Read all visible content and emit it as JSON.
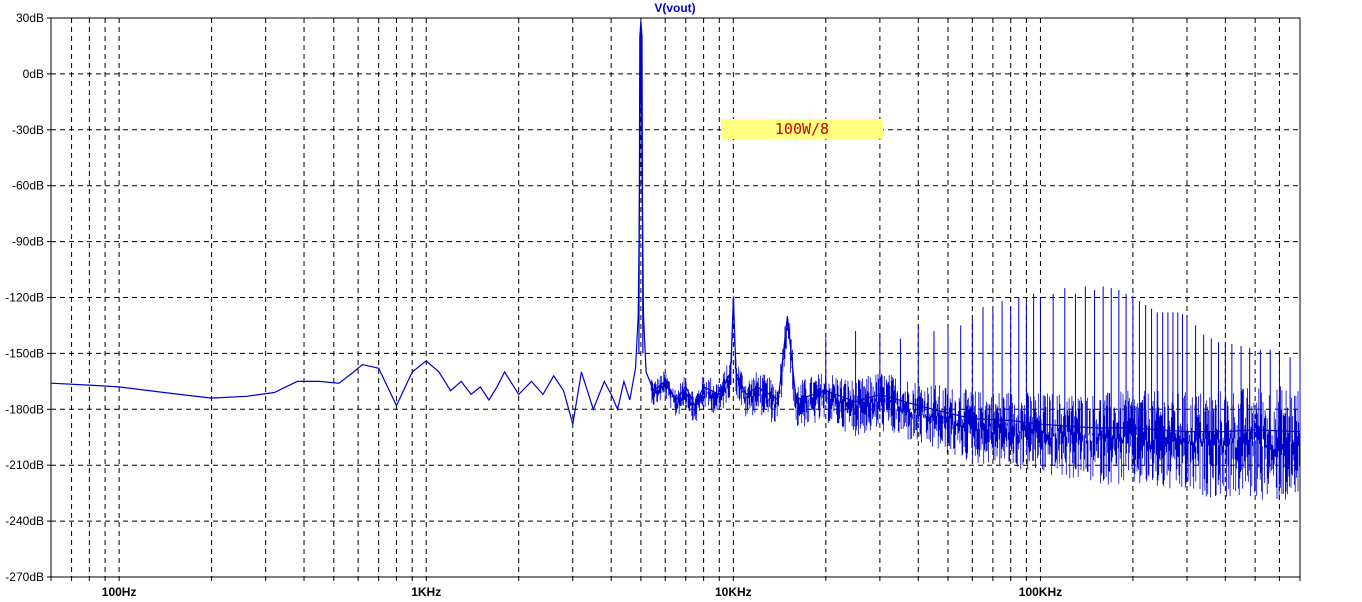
{
  "chart_data": {
    "type": "line",
    "title": "V(vout)",
    "xlabel": "",
    "ylabel": "",
    "x_scale": "log",
    "xlim": [
      60,
      700000
    ],
    "ylim": [
      -270,
      30
    ],
    "grid": true,
    "x_ticks": [
      {
        "value": 100,
        "label": "100Hz"
      },
      {
        "value": 1000,
        "label": "1KHz"
      },
      {
        "value": 10000,
        "label": "10KHz"
      },
      {
        "value": 100000,
        "label": "100KHz"
      }
    ],
    "y_ticks": [
      {
        "value": 30,
        "label": "30dB"
      },
      {
        "value": 0,
        "label": "0dB"
      },
      {
        "value": -30,
        "label": "-30dB"
      },
      {
        "value": -60,
        "label": "-60dB"
      },
      {
        "value": -90,
        "label": "-90dB"
      },
      {
        "value": -120,
        "label": "-120dB"
      },
      {
        "value": -150,
        "label": "-150dB"
      },
      {
        "value": -180,
        "label": "-180dB"
      },
      {
        "value": -210,
        "label": "-210dB"
      },
      {
        "value": -240,
        "label": "-240dB"
      },
      {
        "value": -270,
        "label": "-270dB"
      }
    ],
    "annotation": {
      "text": "100W/8",
      "background": "#ffff80",
      "color": "#cc0000"
    },
    "series": [
      {
        "name": "",
        "color": "#0000cc",
        "fundamental_hz": 5000,
        "points": [
          [
            60,
            -166
          ],
          [
            80,
            -167
          ],
          [
            100,
            -168
          ],
          [
            140,
            -171
          ],
          [
            200,
            -174
          ],
          [
            260,
            -173
          ],
          [
            320,
            -171
          ],
          [
            380,
            -165
          ],
          [
            450,
            -165
          ],
          [
            520,
            -166
          ],
          [
            580,
            -160
          ],
          [
            620,
            -156
          ],
          [
            700,
            -158
          ],
          [
            800,
            -178
          ],
          [
            900,
            -160
          ],
          [
            1000,
            -154
          ],
          [
            1100,
            -160
          ],
          [
            1200,
            -170
          ],
          [
            1300,
            -165
          ],
          [
            1400,
            -172
          ],
          [
            1500,
            -168
          ],
          [
            1600,
            -175
          ],
          [
            1700,
            -168
          ],
          [
            1800,
            -160
          ],
          [
            2000,
            -172
          ],
          [
            2200,
            -165
          ],
          [
            2400,
            -172
          ],
          [
            2600,
            -162
          ],
          [
            2800,
            -170
          ],
          [
            3000,
            -188
          ],
          [
            3200,
            -160
          ],
          [
            3500,
            -180
          ],
          [
            3800,
            -165
          ],
          [
            4000,
            -172
          ],
          [
            4200,
            -180
          ],
          [
            4400,
            -165
          ],
          [
            4600,
            -175
          ],
          [
            4800,
            -158
          ],
          [
            4900,
            -130
          ],
          [
            4950,
            -60
          ],
          [
            5000,
            28
          ],
          [
            5050,
            -60
          ],
          [
            5100,
            -130
          ],
          [
            5200,
            -160
          ],
          [
            5500,
            -170
          ],
          [
            6000,
            -165
          ],
          [
            6500,
            -175
          ],
          [
            7000,
            -168
          ],
          [
            7500,
            -178
          ],
          [
            8000,
            -168
          ],
          [
            9000,
            -172
          ],
          [
            9800,
            -160
          ],
          [
            10000,
            -120
          ],
          [
            10200,
            -160
          ],
          [
            11000,
            -172
          ],
          [
            12000,
            -168
          ],
          [
            14000,
            -175
          ],
          [
            15000,
            -130
          ],
          [
            16000,
            -175
          ],
          [
            20000,
            -170
          ],
          [
            25000,
            -176
          ],
          [
            30000,
            -172
          ],
          [
            40000,
            -178
          ],
          [
            50000,
            -182
          ],
          [
            60000,
            -185
          ],
          [
            80000,
            -186
          ],
          [
            100000,
            -188
          ],
          [
            150000,
            -190
          ],
          [
            200000,
            -190
          ],
          [
            300000,
            -192
          ],
          [
            400000,
            -192
          ],
          [
            500000,
            -191
          ],
          [
            700000,
            -192
          ]
        ],
        "harmonics": [
          [
            10000,
            -120
          ],
          [
            15000,
            -130
          ],
          [
            20000,
            -142
          ],
          [
            25000,
            -138
          ],
          [
            30000,
            -140
          ],
          [
            35000,
            -142
          ],
          [
            40000,
            -135
          ],
          [
            45000,
            -138
          ],
          [
            50000,
            -137
          ],
          [
            55000,
            -135
          ],
          [
            60000,
            -132
          ],
          [
            65000,
            -125
          ],
          [
            70000,
            -127
          ],
          [
            75000,
            -122
          ],
          [
            80000,
            -125
          ],
          [
            85000,
            -120
          ],
          [
            90000,
            -122
          ],
          [
            95000,
            -118
          ],
          [
            100000,
            -120
          ],
          [
            110000,
            -118
          ],
          [
            120000,
            -115
          ],
          [
            130000,
            -118
          ],
          [
            140000,
            -114
          ],
          [
            150000,
            -116
          ],
          [
            160000,
            -114
          ],
          [
            170000,
            -115
          ],
          [
            180000,
            -116
          ],
          [
            190000,
            -118
          ],
          [
            200000,
            -119
          ],
          [
            210000,
            -122
          ],
          [
            220000,
            -124
          ],
          [
            230000,
            -126
          ],
          [
            240000,
            -128
          ],
          [
            250000,
            -128
          ],
          [
            260000,
            -128
          ],
          [
            270000,
            -128
          ],
          [
            280000,
            -128
          ],
          [
            290000,
            -129
          ],
          [
            300000,
            -131
          ],
          [
            320000,
            -135
          ],
          [
            340000,
            -140
          ],
          [
            360000,
            -142
          ],
          [
            380000,
            -144
          ],
          [
            400000,
            -145
          ],
          [
            420000,
            -145
          ],
          [
            450000,
            -146
          ],
          [
            480000,
            -147
          ],
          [
            520000,
            -148
          ],
          [
            560000,
            -148
          ],
          [
            600000,
            -150
          ],
          [
            650000,
            -152
          ],
          [
            700000,
            -153
          ]
        ]
      }
    ]
  }
}
